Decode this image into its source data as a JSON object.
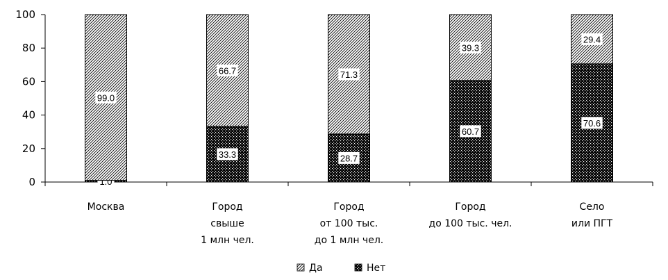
{
  "chart_data": {
    "type": "bar",
    "stacked": true,
    "percent_scale": true,
    "categories": [
      [
        "Москва"
      ],
      [
        "Город",
        "свыше",
        "1 млн чел."
      ],
      [
        "Город",
        "от 100 тыс.",
        "до 1 млн чел."
      ],
      [
        "Город",
        "до 100 тыс. чел."
      ],
      [
        "Село",
        "или ПГТ"
      ]
    ],
    "series": [
      {
        "name": "Нет",
        "values": [
          1.0,
          33.3,
          28.7,
          60.7,
          70.6
        ],
        "labels": [
          "1.0",
          "33.3",
          "28.7",
          "60.7",
          "70.6"
        ],
        "pattern": "dots"
      },
      {
        "name": "Да",
        "values": [
          99.0,
          66.7,
          71.3,
          39.3,
          29.4
        ],
        "labels": [
          "99.0",
          "66.7",
          "71.3",
          "39.3",
          "29.4"
        ],
        "pattern": "hatch"
      }
    ],
    "legend_order": [
      "Да",
      "Нет"
    ],
    "ylim": [
      0,
      100
    ],
    "yticks": [
      0,
      20,
      40,
      60,
      80,
      100
    ],
    "ytick_labels": [
      "0",
      "20",
      "40",
      "60",
      "80",
      "100"
    ],
    "legend_position": "bottom-center",
    "grid": false
  }
}
